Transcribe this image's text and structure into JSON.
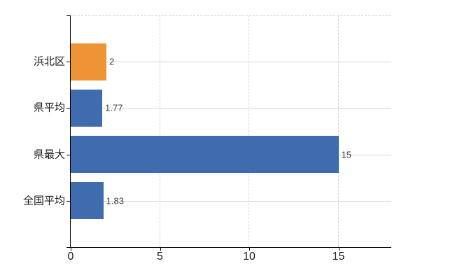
{
  "chart_data": {
    "type": "bar",
    "orientation": "horizontal",
    "title": "",
    "categories": [
      "浜北区",
      "県平均",
      "県最大",
      "全国平均"
    ],
    "values": [
      2,
      1.77,
      15,
      1.83
    ],
    "value_labels": [
      "2",
      "1.77",
      "15",
      "1.83"
    ],
    "bar_colors": [
      "#EF9436",
      "#3E6CAE",
      "#3E6CAE",
      "#3E6CAE"
    ],
    "x_ticks": [
      "0",
      "5",
      "10",
      "15"
    ],
    "x_tick_values": [
      0,
      5,
      10,
      15
    ],
    "xlim": [
      0,
      17.96
    ],
    "ylabel": "",
    "xlabel": "",
    "legend": "none",
    "grid": {
      "horizontal": "solid",
      "vertical": "dashed",
      "top_border": "dashed"
    },
    "colors": {
      "orange": "#EF9436",
      "blue": "#3E6CAE",
      "h_gridline": "#cfd8cf",
      "v_gridline": "#d9d2d9",
      "axis": "#000000",
      "value_label_text": "#3f3f3f",
      "tick_label_text": "#1a1a1a",
      "background": "#ffffff"
    }
  }
}
